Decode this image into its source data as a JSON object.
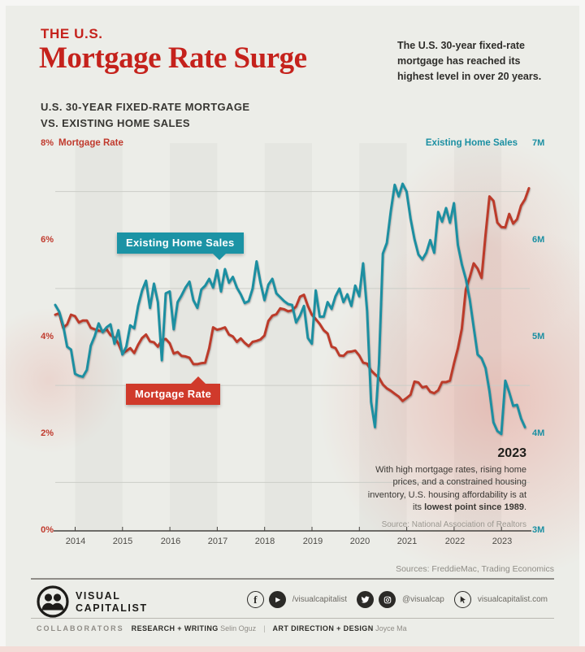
{
  "header": {
    "kicker": "THE U.S.",
    "title": "Mortgage Rate Surge",
    "description": "The U.S. 30-year fixed-rate mortgage has reached its highest level in over 20 years.",
    "subtitle_line1": "U.S. 30-YEAR FIXED-RATE MORTGAGE",
    "subtitle_line2": "VS. EXISTING HOME SALES"
  },
  "chart": {
    "left_axis_title": "Mortgage Rate",
    "right_axis_title": "Existing Home Sales",
    "left_ticks": [
      "8%",
      "6%",
      "4%",
      "2%",
      "0%"
    ],
    "right_ticks": [
      "7M",
      "6M",
      "5M",
      "4M",
      "3M"
    ],
    "years": [
      "2014",
      "2015",
      "2016",
      "2017",
      "2018",
      "2019",
      "2020",
      "2021",
      "2022",
      "2023"
    ],
    "callout_sales": "Existing Home Sales",
    "callout_rate": "Mortgage Rate",
    "annotation": {
      "year": "2023",
      "body": "With high mortgage rates, rising home prices, and a constrained housing inventory, U.S. housing affordability is at its ",
      "body_bold": "lowest point since 1989",
      "body_end": ".",
      "source": "Source: National Association of Realtors"
    }
  },
  "chart_data": {
    "type": "line",
    "title": "U.S. 30-year fixed-rate mortgage vs. existing home sales",
    "x_start_year": 2013.583,
    "x_step_years": 0.08333,
    "x_axis": {
      "tick_labels": [
        "2014",
        "2015",
        "2016",
        "2017",
        "2018",
        "2019",
        "2020",
        "2021",
        "2022",
        "2023"
      ]
    },
    "left_axis": {
      "label": "Mortgage Rate",
      "range": [
        0,
        8
      ],
      "tick_values": [
        8,
        6,
        4,
        2,
        0
      ],
      "unit": "%"
    },
    "right_axis": {
      "label": "Existing Home Sales",
      "range": [
        3000000,
        7000000
      ],
      "tick_values": [
        7,
        6,
        5,
        4,
        3
      ],
      "unit": "M"
    },
    "grid": "horizontal, minor unlabeled lines at odd percentages; alternating vertical year bands",
    "legend_position": "inline callout boxes",
    "series": [
      {
        "name": "Mortgage Rate",
        "axis": "left",
        "color": "#bc3a2c",
        "values": [
          4.46,
          4.49,
          4.19,
          4.26,
          4.46,
          4.43,
          4.3,
          4.34,
          4.34,
          4.19,
          4.16,
          4.13,
          4.12,
          4.16,
          4.04,
          3.99,
          3.86,
          3.67,
          3.71,
          3.77,
          3.67,
          3.84,
          3.98,
          4.05,
          3.91,
          3.89,
          3.8,
          3.94,
          3.96,
          3.87,
          3.66,
          3.69,
          3.61,
          3.6,
          3.57,
          3.44,
          3.44,
          3.46,
          3.47,
          3.77,
          4.2,
          4.15,
          4.17,
          4.2,
          4.05,
          4.01,
          3.9,
          3.97,
          3.88,
          3.81,
          3.9,
          3.92,
          3.95,
          4.03,
          4.33,
          4.44,
          4.47,
          4.59,
          4.57,
          4.53,
          4.55,
          4.63,
          4.83,
          4.87,
          4.64,
          4.46,
          4.37,
          4.27,
          4.14,
          4.07,
          3.8,
          3.77,
          3.62,
          3.61,
          3.69,
          3.7,
          3.72,
          3.62,
          3.47,
          3.45,
          3.31,
          3.23,
          3.16,
          3.02,
          2.94,
          2.89,
          2.83,
          2.77,
          2.68,
          2.74,
          2.81,
          3.08,
          3.06,
          2.96,
          2.98,
          2.87,
          2.84,
          2.9,
          3.07,
          3.07,
          3.1,
          3.45,
          3.76,
          4.17,
          4.98,
          5.23,
          5.52,
          5.41,
          5.22,
          6.11,
          6.9,
          6.81,
          6.36,
          6.27,
          6.26,
          6.54,
          6.34,
          6.43,
          6.71,
          6.84,
          7.07
        ]
      },
      {
        "name": "Existing Home Sales",
        "axis": "right",
        "color": "#1d8fa1",
        "values": [
          5.33,
          5.26,
          5.12,
          4.9,
          4.87,
          4.62,
          4.6,
          4.59,
          4.66,
          4.91,
          5.01,
          5.14,
          5.05,
          5.1,
          5.13,
          4.93,
          5.07,
          4.82,
          4.9,
          5.12,
          5.09,
          5.32,
          5.48,
          5.58,
          5.3,
          5.55,
          5.36,
          4.76,
          5.45,
          5.47,
          5.08,
          5.36,
          5.43,
          5.51,
          5.57,
          5.38,
          5.3,
          5.49,
          5.53,
          5.6,
          5.51,
          5.69,
          5.47,
          5.7,
          5.56,
          5.62,
          5.51,
          5.44,
          5.35,
          5.37,
          5.5,
          5.78,
          5.56,
          5.38,
          5.54,
          5.6,
          5.45,
          5.41,
          5.37,
          5.34,
          5.33,
          5.15,
          5.22,
          5.32,
          4.99,
          4.93,
          5.48,
          5.21,
          5.21,
          5.36,
          5.29,
          5.42,
          5.5,
          5.36,
          5.44,
          5.32,
          5.53,
          5.42,
          5.76,
          5.27,
          4.33,
          4.07,
          4.72,
          5.86,
          5.97,
          6.3,
          6.57,
          6.45,
          6.58,
          6.5,
          6.22,
          6.01,
          5.85,
          5.8,
          5.87,
          6.0,
          5.87,
          6.29,
          6.19,
          6.33,
          6.18,
          6.38,
          5.95,
          5.75,
          5.6,
          5.39,
          5.1,
          4.82,
          4.78,
          4.68,
          4.44,
          4.12,
          4.03,
          4.0,
          4.55,
          4.43,
          4.29,
          4.3,
          4.16,
          4.07
        ]
      }
    ],
    "colors": {
      "rate_line": "#bc3a2c",
      "sales_line": "#1d8fa1",
      "band_dark": "#e5e6e1",
      "grid_minor": "#cbcdc7",
      "grid_red_end": "#c4796f",
      "grid_teal_end": "#8aacb2",
      "axis_line": "#45433f",
      "pink_glow": "#e05041"
    }
  },
  "footer": {
    "sources": "Sources: FreddieMac, Trading Economics",
    "brand_line1": "VISUAL",
    "brand_line2": "CAPITALIST",
    "social_handle": "/visualcapitalist",
    "social_handle2": "@visualcap",
    "website": "visualcapitalist.com",
    "collab_label": "COLLABORATORS",
    "role1": "RESEARCH + WRITING",
    "name1": "Selin Oguz",
    "divider": "|",
    "role2": "ART DIRECTION + DESIGN",
    "name2": "Joyce Ma"
  }
}
